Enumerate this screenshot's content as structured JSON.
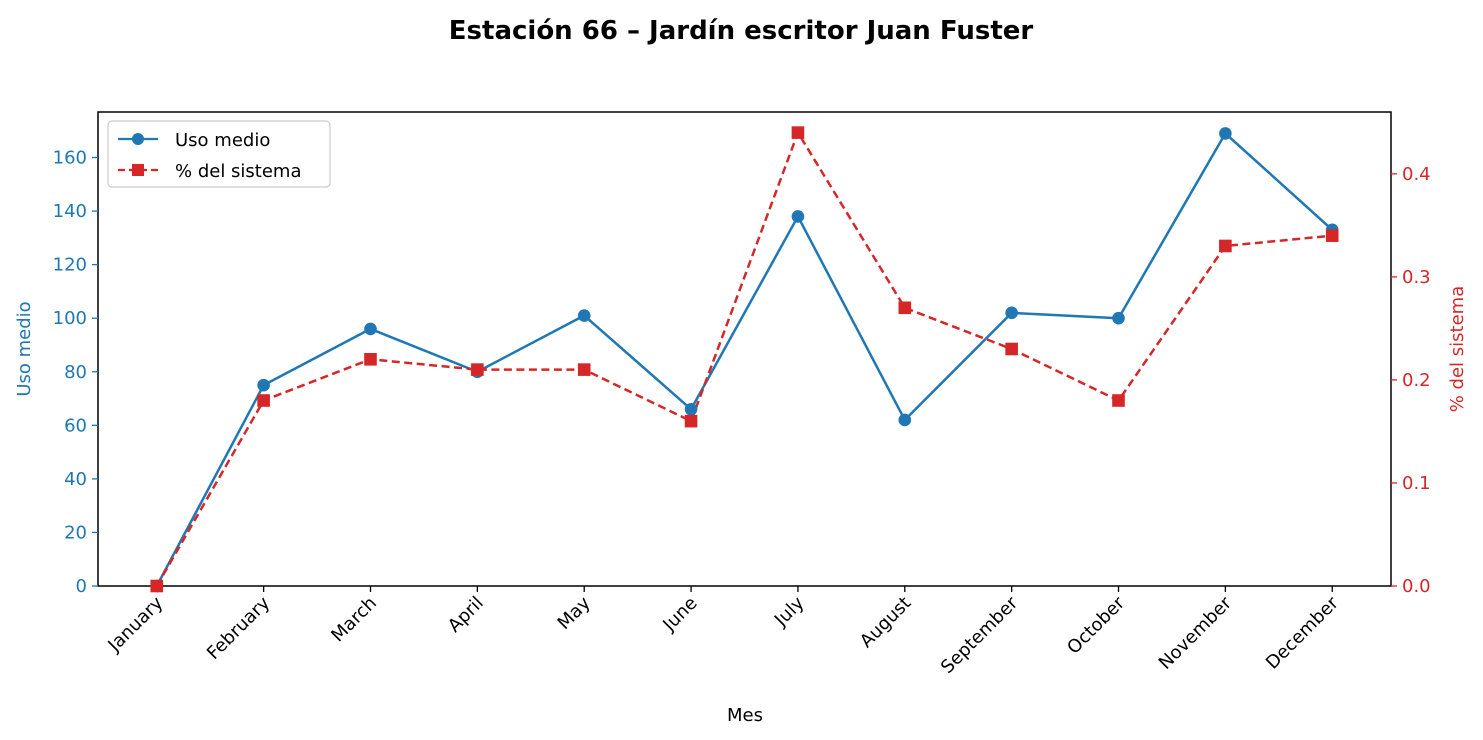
{
  "chart_data": {
    "type": "line",
    "title": "Estación 66 – Jardín escritor Juan Fuster",
    "xlabel": "Mes",
    "ylabel_left": "Uso medio",
    "ylabel_right": "% del sistema",
    "categories": [
      "January",
      "February",
      "March",
      "April",
      "May",
      "June",
      "July",
      "August",
      "September",
      "October",
      "November",
      "December"
    ],
    "left_axis": {
      "ylim": [
        0,
        177
      ],
      "ticks": [
        "0",
        "20",
        "40",
        "60",
        "80",
        "100",
        "120",
        "140",
        "160"
      ],
      "color": "#1f77b4"
    },
    "right_axis": {
      "ylim": [
        0,
        0.46
      ],
      "ticks": [
        "0.0",
        "0.1",
        "0.2",
        "0.3",
        "0.4"
      ],
      "color": "#d62728"
    },
    "series": [
      {
        "name": "Uso medio",
        "axis": "left",
        "color": "#1f77b4",
        "marker": "circle",
        "linestyle": "solid",
        "values": [
          0,
          75,
          96,
          80,
          101,
          66,
          138,
          62,
          102,
          100,
          169,
          133
        ]
      },
      {
        "name": "% del sistema",
        "axis": "right",
        "color": "#d62728",
        "marker": "square",
        "linestyle": "dashed",
        "values": [
          0.0,
          0.18,
          0.22,
          0.21,
          0.21,
          0.16,
          0.44,
          0.27,
          0.23,
          0.18,
          0.33,
          0.34
        ]
      }
    ],
    "legend_position": "top-left",
    "grid": false
  }
}
